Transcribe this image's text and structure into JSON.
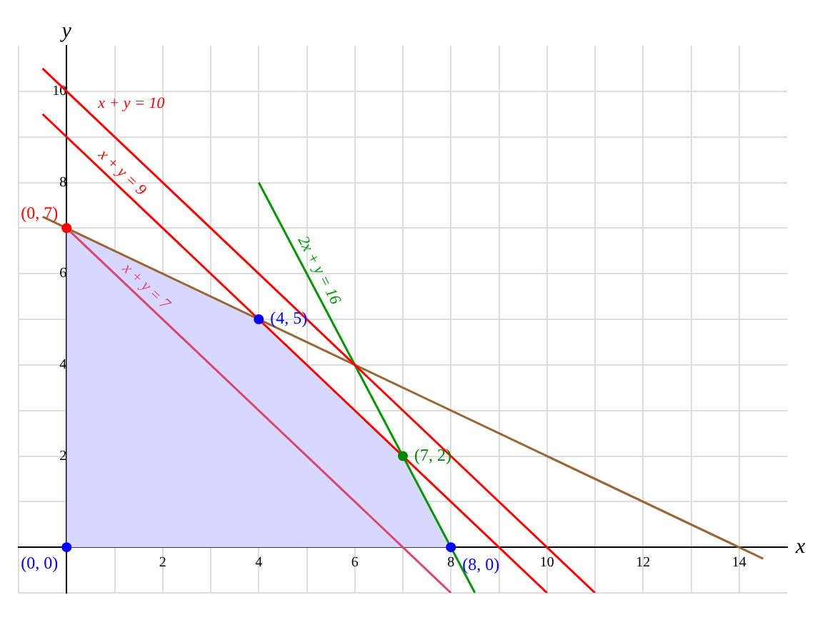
{
  "chart_data": {
    "type": "line",
    "xlabel": "x",
    "ylabel": "y",
    "xlim": [
      -1,
      15
    ],
    "ylim": [
      -1,
      11
    ],
    "xticks": [
      {
        "value": -1,
        "label": null
      },
      {
        "value": 0,
        "label": null
      },
      {
        "value": 1,
        "label": null
      },
      2,
      {
        "value": 3,
        "label": null
      },
      4,
      {
        "value": 5,
        "label": null
      },
      6,
      {
        "value": 7,
        "label": null
      },
      8,
      {
        "value": 9,
        "label": null
      },
      10,
      {
        "value": 11,
        "label": null
      },
      12,
      {
        "value": 13,
        "label": null
      },
      14
    ],
    "yticks": [
      {
        "value": -1,
        "label": null
      },
      {
        "value": 0,
        "label": null
      },
      {
        "value": 1,
        "label": null
      },
      2,
      {
        "value": 3,
        "label": null
      },
      4,
      {
        "value": 5,
        "label": null
      },
      6,
      {
        "value": 7,
        "label": null
      },
      8,
      {
        "value": 9,
        "label": null
      },
      10
    ],
    "grid": true,
    "legend": false,
    "series": [
      {
        "type": "area",
        "color": "#d8d8ff",
        "x": [
          0,
          4,
          7,
          8
        ],
        "values": [
          7,
          5,
          2,
          0
        ]
      },
      {
        "type": "line",
        "name": "x + y = 10",
        "color": "#ff0000",
        "x": [
          -0.5,
          11
        ],
        "values": [
          10.5,
          -1
        ]
      },
      {
        "type": "line",
        "name": "x + y = 9",
        "color": "#ff0000",
        "x": [
          -0.5,
          10
        ],
        "values": [
          9.5,
          -1
        ]
      },
      {
        "type": "line",
        "name": "x + y = 7",
        "color": "#d9466f",
        "x": [
          0,
          8
        ],
        "values": [
          7,
          -1
        ]
      },
      {
        "type": "line",
        "name": "2x + y = 16",
        "color": "#009900",
        "x": [
          4,
          8.5
        ],
        "values": [
          8,
          -1
        ]
      },
      {
        "type": "line",
        "color": "#996633",
        "x": [
          -0.5,
          14.5
        ],
        "values": [
          7.25,
          -0.25
        ]
      },
      {
        "type": "scatter",
        "colors": [
          "#0000ff",
          "#ff0000",
          "#0000ff",
          "#008800",
          "#0000ff"
        ],
        "x": [
          0,
          0,
          4,
          7,
          8
        ],
        "values": [
          0,
          7,
          5,
          2,
          0
        ]
      }
    ],
    "annotations": [
      {
        "text": "(0, 0)",
        "x": 0,
        "y": 0
      },
      {
        "text": "(0, 7)",
        "x": 0,
        "y": 7
      },
      {
        "text": "(4, 5)",
        "x": 4,
        "y": 5
      },
      {
        "text": "(7, 2)",
        "x": 7,
        "y": 2
      },
      {
        "text": "(8, 0)",
        "x": 8,
        "y": 0
      }
    ]
  }
}
